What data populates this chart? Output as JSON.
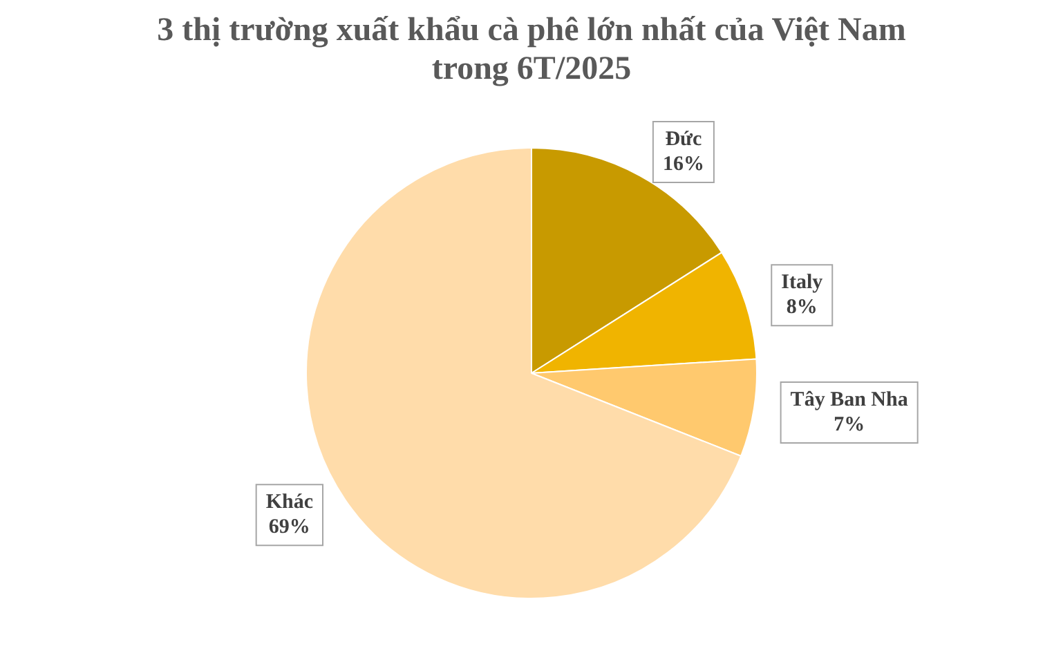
{
  "chart_data": {
    "type": "pie",
    "title": "3 thị trường xuất khẩu cà phê lớn nhất của Việt Nam trong 6T/2025",
    "categories": [
      "Đức",
      "Italy",
      "Tây Ban Nha",
      "Khác"
    ],
    "values": [
      16,
      8,
      7,
      69
    ],
    "colors": [
      "#c89a00",
      "#f0b400",
      "#ffc96e",
      "#ffdcaa"
    ],
    "value_labels": [
      "16%",
      "8%",
      "7%",
      "69%"
    ],
    "legend": false
  }
}
